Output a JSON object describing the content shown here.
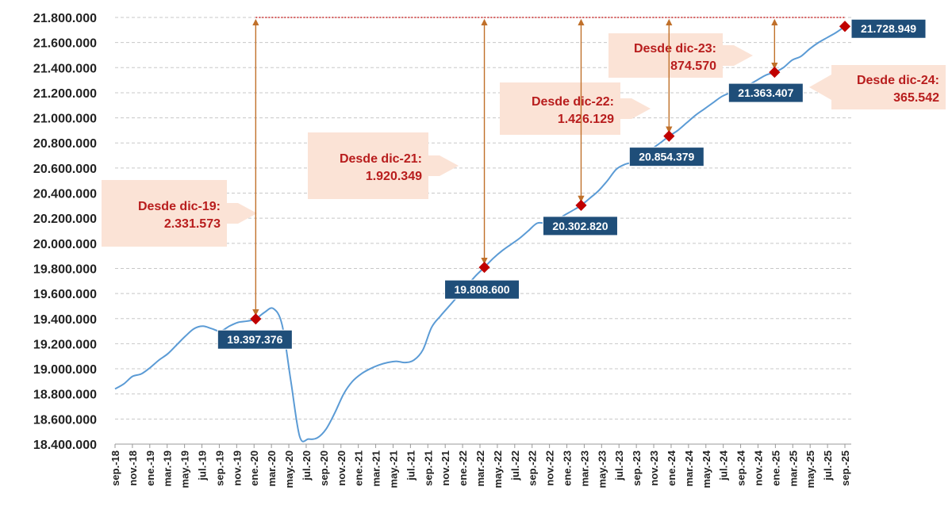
{
  "chart_data": {
    "type": "line",
    "title": "",
    "xlabel": "",
    "ylabel": "",
    "ylim": [
      18400000,
      21800000
    ],
    "yticks": [
      18400000,
      18600000,
      18800000,
      19000000,
      19200000,
      19400000,
      19600000,
      19800000,
      20000000,
      20200000,
      20400000,
      20600000,
      20800000,
      21000000,
      21200000,
      21400000,
      21600000,
      21800000
    ],
    "ytick_labels": [
      "18.400.000",
      "18.600.000",
      "18.800.000",
      "19.000.000",
      "19.200.000",
      "19.400.000",
      "19.600.000",
      "19.800.000",
      "20.000.000",
      "20.200.000",
      "20.400.000",
      "20.600.000",
      "20.800.000",
      "21.000.000",
      "21.200.000",
      "21.400.000",
      "21.600.000",
      "21.800.000"
    ],
    "xticks": [
      "sep.-18",
      "nov.-18",
      "ene.-19",
      "mar.-19",
      "may.-19",
      "jul.-19",
      "sep.-19",
      "nov.-19",
      "ene.-20",
      "mar.-20",
      "may.-20",
      "jul.-20",
      "sep.-20",
      "nov.-20",
      "ene.-21",
      "mar.-21",
      "may.-21",
      "jul.-21",
      "sep.-21",
      "nov.-21",
      "ene.-22",
      "mar.-22",
      "may.-22",
      "jul.-22",
      "sep.-22",
      "nov.-22",
      "ene.-23",
      "mar.-23",
      "may.-23",
      "jul.-23",
      "sep.-23",
      "nov.-23",
      "ene.-24",
      "mar.-24",
      "may.-24",
      "jul.-24",
      "sep.-24",
      "nov.-24",
      "ene.-25",
      "mar.-25",
      "may.-25",
      "jul.-25",
      "sep.-25"
    ],
    "grid": true,
    "line_color": "#5b9bd5",
    "marker_color": "#c00000",
    "label_color": "#1f4e79",
    "arrow_color": "#c0702a",
    "annotation_color": "#b81d1d",
    "annotation_bg": "#fbe3d6",
    "reference_line": {
      "value": 21800000,
      "color": "#c00000"
    },
    "series": [
      {
        "values": [
          18840000,
          18880000,
          18940000,
          18960000,
          19010000,
          19070000,
          19120000,
          19190000,
          19260000,
          19320000,
          19340000,
          19320000,
          19300000,
          19340000,
          19370000,
          19380000,
          19397376,
          19450000,
          19480000,
          19350000,
          18900000,
          18460000,
          18440000,
          18450000,
          18520000,
          18650000,
          18800000,
          18900000,
          18960000,
          19000000,
          19030000,
          19050000,
          19060000,
          19050000,
          19070000,
          19150000,
          19330000,
          19420000,
          19500000,
          19580000,
          19660000,
          19740000,
          19808600,
          19880000,
          19940000,
          19990000,
          20040000,
          20100000,
          20160000,
          20160000,
          20170000,
          20220000,
          20260000,
          20302820,
          20360000,
          20420000,
          20500000,
          20590000,
          20630000,
          20650000,
          20700000,
          20750000,
          20800000,
          20854379,
          20900000,
          20960000,
          21020000,
          21070000,
          21120000,
          21170000,
          21200000,
          21220000,
          21260000,
          21300000,
          21340000,
          21363407,
          21400000,
          21460000,
          21490000,
          21550000,
          21600000,
          21640000,
          21680000,
          21728949
        ]
      }
    ],
    "highlights": [
      {
        "month": "dic-19",
        "value": 19397376,
        "label": "19.397.376"
      },
      {
        "month": "dic-21",
        "value": 19808600,
        "label": "19.808.600"
      },
      {
        "month": "dic-22",
        "value": 20302820,
        "label": "20.302.820"
      },
      {
        "month": "dic-23",
        "value": 20854379,
        "label": "20.854.379"
      },
      {
        "month": "dic-24",
        "value": 21363407,
        "label": "21.363.407"
      },
      {
        "month": "sep-25",
        "value": 21728949,
        "label": "21.728.949"
      }
    ],
    "annotations": [
      {
        "line1": "Desde dic-19:",
        "line2": "2.331.573"
      },
      {
        "line1": "Desde dic-21:",
        "line2": "1.920.349"
      },
      {
        "line1": "Desde dic-22:",
        "line2": "1.426.129"
      },
      {
        "line1": "Desde dic-23:",
        "line2": "874.570"
      },
      {
        "line1": "Desde dic-24:",
        "line2": "365.542"
      }
    ]
  }
}
